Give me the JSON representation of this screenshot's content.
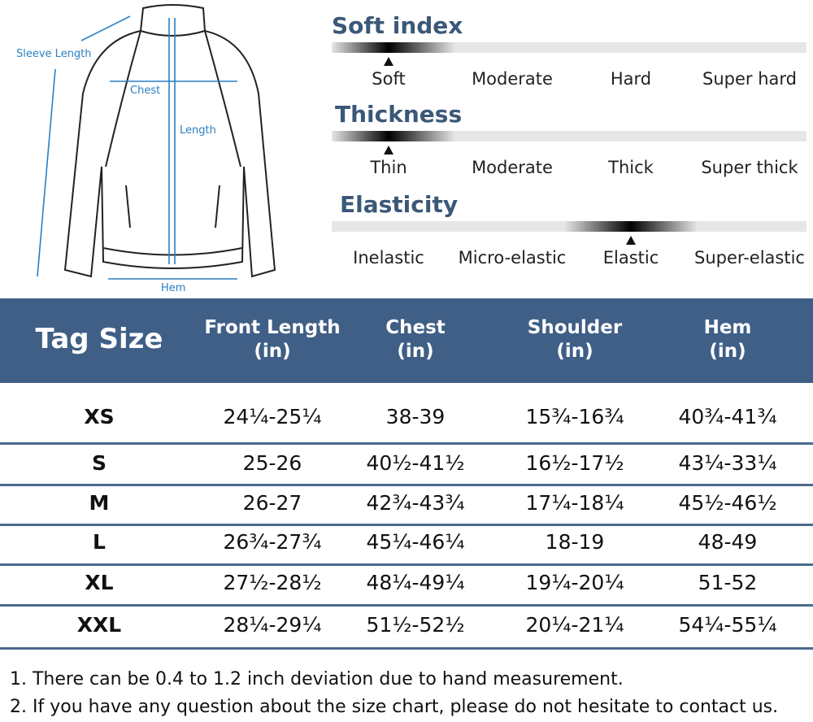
{
  "diagram": {
    "labels": [
      "Sleeve Length",
      "Chest",
      "Length",
      "Hem"
    ]
  },
  "scales": [
    {
      "title": "Soft index",
      "options": [
        "Soft",
        "Moderate",
        "Hard",
        "Super hard"
      ],
      "selected": 0
    },
    {
      "title": "Thickness",
      "options": [
        "Thin",
        "Moderate",
        "Thick",
        "Super thick"
      ],
      "selected": 0
    },
    {
      "title": "Elasticity",
      "options": [
        "Inelastic",
        "Micro-elastic",
        "Elastic",
        "Super-elastic"
      ],
      "selected": 2
    }
  ],
  "table": {
    "header": [
      "Tag Size",
      "Front Length\n(in)",
      "Chest\n(in)",
      "Shoulder\n(in)",
      "Hem\n(in)"
    ],
    "rows": [
      [
        "XS",
        "24¼-25¼",
        "38-39",
        "15¾-16¾",
        "40¾-41¾"
      ],
      [
        "S",
        "25-26",
        "40½-41½",
        "16½-17½",
        "43¼-33¼"
      ],
      [
        "M",
        "26-27",
        "42¾-43¾",
        "17¼-18¼",
        "45½-46½"
      ],
      [
        "L",
        "26¾-27¾",
        "45¼-46¼",
        "18-19",
        "48-49"
      ],
      [
        "XL",
        "27½-28½",
        "48¼-49¼",
        "19¼-20¼",
        "51-52"
      ],
      [
        "XXL",
        "28¼-29¼",
        "51½-52½",
        "20¼-21¼",
        "54¼-55¼"
      ]
    ]
  },
  "notes": [
    "1. There can be 0.4 to 1.2 inch deviation due to hand measurement.",
    "2. If you have any question about the size chart, please do not hesitate to contact us."
  ]
}
